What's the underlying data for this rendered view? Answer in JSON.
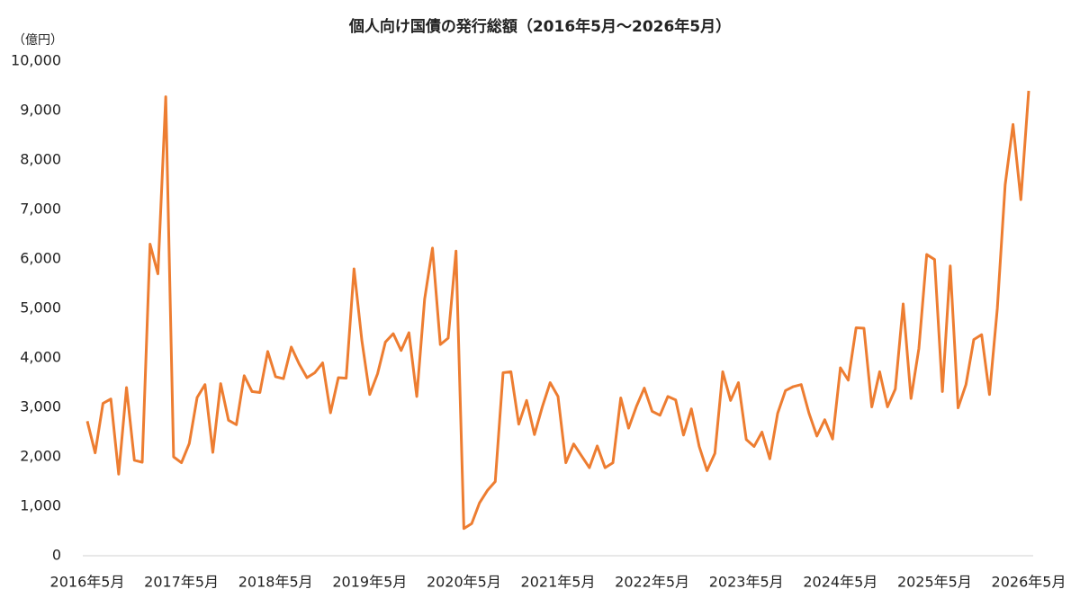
{
  "chart_data": {
    "type": "line",
    "title": "個人向け国債の発行総額（2016年5月～2026年5月）",
    "y_label": "（億円）",
    "color": "#ed7d31",
    "categories": [
      "2016年5月",
      null,
      null,
      null,
      null,
      null,
      null,
      null,
      null,
      null,
      null,
      null,
      "2017年5月",
      null,
      null,
      null,
      null,
      null,
      null,
      null,
      null,
      null,
      null,
      null,
      "2018年5月",
      null,
      null,
      null,
      null,
      null,
      null,
      null,
      null,
      null,
      null,
      null,
      "2019年5月",
      null,
      null,
      null,
      null,
      null,
      null,
      null,
      null,
      null,
      null,
      null,
      "2020年5月",
      null,
      null,
      null,
      null,
      null,
      null,
      null,
      null,
      null,
      null,
      null,
      "2021年5月",
      null,
      null,
      null,
      null,
      null,
      null,
      null,
      null,
      null,
      null,
      null,
      "2022年5月",
      null,
      null,
      null,
      null,
      null,
      null,
      null,
      null,
      null,
      null,
      null,
      "2023年5月",
      null,
      null,
      null,
      null,
      null,
      null,
      null,
      null,
      null,
      null,
      null,
      "2024年5月",
      null,
      null,
      null,
      null,
      null,
      null,
      null,
      null,
      null,
      null,
      null,
      "2025年5月",
      null,
      null,
      null,
      null,
      null,
      null,
      null,
      null,
      null,
      null,
      null,
      "2026年5月"
    ],
    "values": [
      2720,
      2080,
      3080,
      3170,
      1650,
      3400,
      1930,
      1890,
      6300,
      5700,
      9280,
      2000,
      1880,
      2270,
      3200,
      3460,
      2090,
      3480,
      2740,
      2650,
      3640,
      3320,
      3300,
      4130,
      3620,
      3580,
      4220,
      3880,
      3600,
      3700,
      3900,
      2890,
      3600,
      3590,
      5800,
      4350,
      3260,
      3680,
      4320,
      4490,
      4150,
      4510,
      3220,
      5190,
      6220,
      4270,
      4400,
      6160,
      550,
      650,
      1070,
      1320,
      1500,
      3700,
      3720,
      2660,
      3140,
      2450,
      3010,
      3500,
      3220,
      1880,
      2260,
      2020,
      1780,
      2220,
      1780,
      1880,
      3190,
      2580,
      3020,
      3390,
      2920,
      2840,
      3220,
      3150,
      2440,
      2970,
      2210,
      1720,
      2070,
      3720,
      3140,
      3500,
      2350,
      2210,
      2500,
      1960,
      2880,
      3340,
      3420,
      3460,
      2880,
      2420,
      2750,
      2360,
      3800,
      3550,
      4610,
      4600,
      3010,
      3720,
      3010,
      3370,
      5090,
      3180,
      4190,
      6090,
      5990,
      3320,
      5860,
      2990,
      3460,
      4370,
      4470,
      3260,
      5000,
      7500,
      8720,
      7200,
      9400
    ],
    "ylim": [
      0,
      10000
    ],
    "yticks": [
      0,
      {
        "value": 1000,
        "label": "1,000"
      },
      {
        "value": 2000,
        "label": "2,000"
      },
      {
        "value": 3000,
        "label": "3,000"
      },
      {
        "value": 4000,
        "label": "4,000"
      },
      {
        "value": 5000,
        "label": "5,000"
      },
      {
        "value": 6000,
        "label": "6,000"
      },
      {
        "value": 7000,
        "label": "7,000"
      },
      {
        "value": 8000,
        "label": "8,000"
      },
      {
        "value": 9000,
        "label": "9,000"
      },
      {
        "value": 10000,
        "label": "10,000"
      }
    ],
    "grid": false
  }
}
